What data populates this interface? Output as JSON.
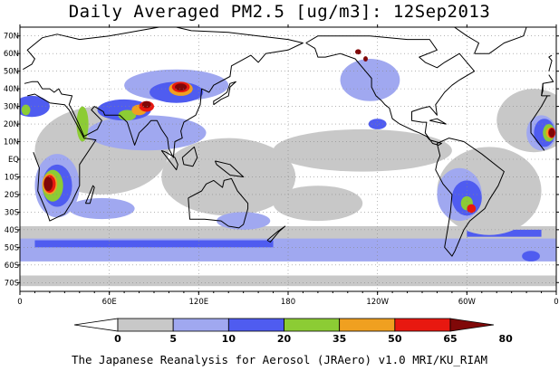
{
  "title": "Daily Averaged PM2.5 [ug/m3]: 12Sep2013",
  "credit": "The Japanese Reanalysis for Aerosol (JRAero) v1.0 MRI/KU_RIAM",
  "map": {
    "projection": "equirectangular",
    "lon_range": [
      0,
      360
    ],
    "lat_range": [
      -75,
      75
    ],
    "lon_ticks": [
      {
        "lon": 0,
        "label": "0"
      },
      {
        "lon": 60,
        "label": "60E"
      },
      {
        "lon": 120,
        "label": "120E"
      },
      {
        "lon": 180,
        "label": "180"
      },
      {
        "lon": 240,
        "label": "120W"
      },
      {
        "lon": 300,
        "label": "60W"
      },
      {
        "lon": 360,
        "label": "0"
      }
    ],
    "lat_ticks": [
      {
        "lat": 70,
        "label": "70N"
      },
      {
        "lat": 60,
        "label": "60N"
      },
      {
        "lat": 50,
        "label": "50N"
      },
      {
        "lat": 40,
        "label": "40N"
      },
      {
        "lat": 30,
        "label": "30N"
      },
      {
        "lat": 20,
        "label": "20N"
      },
      {
        "lat": 10,
        "label": "10N"
      },
      {
        "lat": 0,
        "label": "EQ"
      },
      {
        "lat": -10,
        "label": "10S"
      },
      {
        "lat": -20,
        "label": "20S"
      },
      {
        "lat": -30,
        "label": "30S"
      },
      {
        "lat": -40,
        "label": "40S"
      },
      {
        "lat": -50,
        "label": "50S"
      },
      {
        "lat": -60,
        "label": "60S"
      },
      {
        "lat": -70,
        "label": "70S"
      }
    ],
    "grid": "dotted"
  },
  "colorbar": {
    "levels": [
      "0",
      "5",
      "10",
      "20",
      "35",
      "50",
      "65",
      "80"
    ],
    "colors": [
      "#ffffff",
      "#c8c8c8",
      "#a0a8f0",
      "#4f5cf0",
      "#8ccc34",
      "#f0a020",
      "#e81810",
      "#800808"
    ],
    "extend": "both"
  },
  "bands": [
    {
      "color": "#c8c8c8",
      "lon": [
        0,
        360
      ],
      "lat": [
        -38,
        -52
      ]
    },
    {
      "color": "#c8c8c8",
      "lon": [
        0,
        360
      ],
      "lat": [
        40,
        62
      ]
    },
    {
      "color": "#c8c8c8",
      "lon": [
        0,
        360
      ],
      "lat": [
        -66,
        -72
      ]
    },
    {
      "color": "#a0a8f0",
      "lon": [
        0,
        360
      ],
      "lat": [
        -45,
        -58
      ]
    },
    {
      "color": "#4f5cf0",
      "lon": [
        10,
        170
      ],
      "lat": [
        -46,
        -50
      ]
    },
    {
      "color": "#4f5cf0",
      "lon": [
        300,
        350
      ],
      "lat": [
        -40,
        -44
      ]
    }
  ],
  "blobs": [
    {
      "c": "#c8c8c8",
      "lon": 55,
      "lat": 5,
      "rx": 45,
      "ry": 25
    },
    {
      "c": "#c8c8c8",
      "lon": 140,
      "lat": -10,
      "rx": 45,
      "ry": 22
    },
    {
      "c": "#c8c8c8",
      "lon": 230,
      "lat": 5,
      "rx": 60,
      "ry": 12
    },
    {
      "c": "#c8c8c8",
      "lon": 315,
      "lat": -18,
      "rx": 35,
      "ry": 25
    },
    {
      "c": "#c8c8c8",
      "lon": 200,
      "lat": -25,
      "rx": 30,
      "ry": 10
    },
    {
      "c": "#c8c8c8",
      "lon": 345,
      "lat": 22,
      "rx": 25,
      "ry": 18
    },
    {
      "c": "#a0a8f0",
      "lon": 85,
      "lat": 15,
      "rx": 40,
      "ry": 10
    },
    {
      "c": "#a0a8f0",
      "lon": 105,
      "lat": 42,
      "rx": 35,
      "ry": 9
    },
    {
      "c": "#a0a8f0",
      "lon": 25,
      "lat": -15,
      "rx": 15,
      "ry": 18
    },
    {
      "c": "#a0a8f0",
      "lon": 55,
      "lat": -28,
      "rx": 22,
      "ry": 6
    },
    {
      "c": "#a0a8f0",
      "lon": 150,
      "lat": -35,
      "rx": 18,
      "ry": 5
    },
    {
      "c": "#a0a8f0",
      "lon": 295,
      "lat": -20,
      "rx": 15,
      "ry": 15
    },
    {
      "c": "#a0a8f0",
      "lon": 350,
      "lat": 15,
      "rx": 10,
      "ry": 10
    },
    {
      "c": "#a0a8f0",
      "lon": 235,
      "lat": 45,
      "rx": 20,
      "ry": 12
    },
    {
      "c": "#4f5cf0",
      "lon": 8,
      "lat": 30,
      "rx": 12,
      "ry": 6
    },
    {
      "c": "#4f5cf0",
      "lon": 70,
      "lat": 28,
      "rx": 18,
      "ry": 6
    },
    {
      "c": "#4f5cf0",
      "lon": 105,
      "lat": 38,
      "rx": 18,
      "ry": 6
    },
    {
      "c": "#4f5cf0",
      "lon": 25,
      "lat": -15,
      "rx": 10,
      "ry": 12
    },
    {
      "c": "#4f5cf0",
      "lon": 300,
      "lat": -22,
      "rx": 10,
      "ry": 10
    },
    {
      "c": "#4f5cf0",
      "lon": 352,
      "lat": 15,
      "rx": 7,
      "ry": 8
    },
    {
      "c": "#4f5cf0",
      "lon": 343,
      "lat": -55,
      "rx": 6,
      "ry": 3
    },
    {
      "c": "#4f5cf0",
      "lon": 240,
      "lat": 20,
      "rx": 6,
      "ry": 3
    },
    {
      "c": "#8ccc34",
      "lon": 22,
      "lat": -15,
      "rx": 7,
      "ry": 9
    },
    {
      "c": "#8ccc34",
      "lon": 42,
      "lat": 20,
      "rx": 4,
      "ry": 10
    },
    {
      "c": "#8ccc34",
      "lon": 72,
      "lat": 25,
      "rx": 6,
      "ry": 3
    },
    {
      "c": "#8ccc34",
      "lon": 4,
      "lat": 28,
      "rx": 3,
      "ry": 3
    },
    {
      "c": "#8ccc34",
      "lon": 355,
      "lat": 15,
      "rx": 4,
      "ry": 5
    },
    {
      "c": "#8ccc34",
      "lon": 300,
      "lat": -25,
      "rx": 4,
      "ry": 4
    },
    {
      "c": "#f0a020",
      "lon": 20,
      "lat": -14,
      "rx": 5,
      "ry": 6
    },
    {
      "c": "#f0a020",
      "lon": 80,
      "lat": 28,
      "rx": 5,
      "ry": 3
    },
    {
      "c": "#f0a020",
      "lon": 108,
      "lat": 40,
      "rx": 8,
      "ry": 4
    },
    {
      "c": "#f0a020",
      "lon": 356,
      "lat": 15,
      "rx": 3,
      "ry": 3
    },
    {
      "c": "#e81810",
      "lon": 20,
      "lat": -14,
      "rx": 4,
      "ry": 5
    },
    {
      "c": "#e81810",
      "lon": 85,
      "lat": 30,
      "rx": 5,
      "ry": 3
    },
    {
      "c": "#e81810",
      "lon": 108,
      "lat": 41,
      "rx": 6,
      "ry": 3
    },
    {
      "c": "#e81810",
      "lon": 357,
      "lat": 15,
      "rx": 2.5,
      "ry": 3
    },
    {
      "c": "#e81810",
      "lon": 303,
      "lat": -28,
      "rx": 3,
      "ry": 2.5
    },
    {
      "c": "#800808",
      "lon": 19,
      "lat": -14,
      "rx": 3,
      "ry": 4
    },
    {
      "c": "#800808",
      "lon": 85,
      "lat": 31,
      "rx": 3,
      "ry": 2
    },
    {
      "c": "#800808",
      "lon": 108,
      "lat": 41,
      "rx": 4,
      "ry": 2
    },
    {
      "c": "#800808",
      "lon": 357,
      "lat": 15,
      "rx": 2,
      "ry": 2.5
    },
    {
      "c": "#800808",
      "lon": 227,
      "lat": 61,
      "rx": 2,
      "ry": 1.5
    },
    {
      "c": "#800808",
      "lon": 232,
      "lat": 57,
      "rx": 1.5,
      "ry": 1.5
    }
  ],
  "coastlines": [
    [
      [
        5,
        36
      ],
      [
        10,
        37
      ],
      [
        20,
        32
      ],
      [
        30,
        31
      ],
      [
        33,
        28
      ],
      [
        43,
        12
      ],
      [
        51,
        11
      ],
      [
        40,
        -3
      ],
      [
        40,
        -15
      ],
      [
        35,
        -24
      ],
      [
        30,
        -31
      ],
      [
        20,
        -35
      ],
      [
        18,
        -30
      ],
      [
        12,
        -18
      ],
      [
        13,
        -5
      ],
      [
        9,
        4
      ],
      [
        -8,
        5
      ],
      [
        -17,
        15
      ],
      [
        -17,
        21
      ],
      [
        -10,
        30
      ],
      [
        -6,
        36
      ],
      [
        5,
        36
      ]
    ],
    [
      [
        -10,
        36
      ],
      [
        -9,
        43
      ],
      [
        -2,
        44
      ],
      [
        -5,
        48
      ],
      [
        2,
        51
      ],
      [
        8,
        54
      ],
      [
        10,
        57
      ],
      [
        5,
        62
      ],
      [
        15,
        69
      ],
      [
        25,
        71
      ],
      [
        40,
        68
      ],
      [
        60,
        70
      ],
      [
        80,
        73
      ],
      [
        100,
        76
      ],
      [
        115,
        73
      ],
      [
        140,
        72
      ],
      [
        160,
        70
      ],
      [
        180,
        68
      ],
      [
        190,
        66
      ],
      [
        180,
        62
      ],
      [
        165,
        60
      ],
      [
        160,
        55
      ],
      [
        155,
        59
      ],
      [
        142,
        53
      ],
      [
        141,
        47
      ],
      [
        130,
        42
      ],
      [
        127,
        38
      ],
      [
        122,
        40
      ],
      [
        121,
        31
      ],
      [
        118,
        25
      ],
      [
        110,
        21
      ],
      [
        108,
        16
      ],
      [
        109,
        12
      ],
      [
        104,
        10
      ],
      [
        103,
        1
      ],
      [
        100,
        6
      ],
      [
        99,
        12
      ],
      [
        95,
        17
      ],
      [
        92,
        22
      ],
      [
        88,
        22
      ],
      [
        86,
        20
      ],
      [
        80,
        15
      ],
      [
        77,
        8
      ],
      [
        72,
        21
      ],
      [
        67,
        25
      ],
      [
        57,
        25
      ],
      [
        56,
        27
      ],
      [
        50,
        30
      ],
      [
        48,
        28
      ],
      [
        55,
        22
      ],
      [
        52,
        17
      ],
      [
        43,
        13
      ],
      [
        39,
        21
      ],
      [
        35,
        28
      ],
      [
        33,
        31
      ],
      [
        35,
        36
      ],
      [
        28,
        37
      ],
      [
        26,
        40
      ],
      [
        23,
        38
      ],
      [
        20,
        40
      ],
      [
        15,
        40
      ],
      [
        12,
        44
      ],
      [
        8,
        44
      ],
      [
        3,
        43
      ],
      [
        -4,
        36
      ],
      [
        -10,
        36
      ]
    ],
    [
      [
        -10,
        36
      ],
      [
        -9,
        39
      ],
      [
        -9,
        43
      ]
    ],
    [
      [
        130,
        31
      ],
      [
        135,
        34
      ],
      [
        140,
        36
      ],
      [
        141,
        41
      ],
      [
        145,
        44
      ],
      [
        141,
        43
      ],
      [
        139,
        38
      ],
      [
        134,
        35
      ],
      [
        130,
        33
      ],
      [
        130,
        31
      ]
    ],
    [
      [
        113,
        -22
      ],
      [
        114,
        -34
      ],
      [
        124,
        -34
      ],
      [
        135,
        -35
      ],
      [
        140,
        -38
      ],
      [
        147,
        -39
      ],
      [
        150,
        -37
      ],
      [
        153,
        -28
      ],
      [
        153,
        -25
      ],
      [
        146,
        -18
      ],
      [
        142,
        -11
      ],
      [
        137,
        -12
      ],
      [
        136,
        -16
      ],
      [
        130,
        -12
      ],
      [
        125,
        -14
      ],
      [
        122,
        -18
      ],
      [
        113,
        -22
      ]
    ],
    [
      [
        95,
        5
      ],
      [
        105,
        -6
      ],
      [
        106,
        -3
      ],
      [
        104,
        1
      ],
      [
        98,
        4
      ],
      [
        95,
        5
      ]
    ],
    [
      [
        109,
        1
      ],
      [
        117,
        7
      ],
      [
        119,
        1
      ],
      [
        116,
        -4
      ],
      [
        110,
        -3
      ],
      [
        109,
        1
      ]
    ],
    [
      [
        131,
        -1
      ],
      [
        141,
        -3
      ],
      [
        150,
        -10
      ],
      [
        141,
        -9
      ],
      [
        132,
        -3
      ],
      [
        131,
        -1
      ]
    ],
    [
      [
        166,
        -46
      ],
      [
        173,
        -41
      ],
      [
        178,
        -38
      ],
      [
        174,
        -41
      ],
      [
        168,
        -47
      ],
      [
        166,
        -46
      ]
    ],
    [
      [
        44,
        -25
      ],
      [
        49,
        -15
      ],
      [
        50,
        -16
      ],
      [
        47,
        -25
      ],
      [
        44,
        -25
      ]
    ],
    [
      [
        -168,
        66
      ],
      [
        -160,
        70
      ],
      [
        -140,
        70
      ],
      [
        -125,
        70
      ],
      [
        -100,
        68
      ],
      [
        -85,
        68
      ],
      [
        -80,
        62
      ],
      [
        -92,
        58
      ],
      [
        -88,
        55
      ],
      [
        -80,
        52
      ],
      [
        -75,
        55
      ],
      [
        -65,
        60
      ],
      [
        -60,
        55
      ],
      [
        -55,
        50
      ],
      [
        -65,
        45
      ],
      [
        -70,
        42
      ],
      [
        -75,
        38
      ],
      [
        -81,
        31
      ],
      [
        -80,
        25
      ],
      [
        -82,
        27
      ],
      [
        -85,
        30
      ],
      [
        -90,
        29
      ],
      [
        -97,
        27
      ],
      [
        -97,
        22
      ],
      [
        -90,
        21
      ],
      [
        -87,
        21
      ],
      [
        -88,
        15
      ],
      [
        -83,
        9
      ],
      [
        -79,
        8
      ],
      [
        -77,
        9
      ],
      [
        -85,
        11
      ],
      [
        -87,
        13
      ],
      [
        -92,
        15
      ],
      [
        -95,
        16
      ],
      [
        -105,
        20
      ],
      [
        -110,
        23
      ],
      [
        -112,
        29
      ],
      [
        -115,
        31
      ],
      [
        -117,
        33
      ],
      [
        -121,
        36
      ],
      [
        -124,
        41
      ],
      [
        -124,
        46
      ],
      [
        -128,
        50
      ],
      [
        -135,
        57
      ],
      [
        -145,
        60
      ],
      [
        -155,
        58
      ],
      [
        -160,
        58
      ],
      [
        -162,
        63
      ],
      [
        -168,
        66
      ]
    ],
    [
      [
        -80,
        9
      ],
      [
        -72,
        12
      ],
      [
        -62,
        10
      ],
      [
        -50,
        3
      ],
      [
        -35,
        -7
      ],
      [
        -39,
        -15
      ],
      [
        -45,
        -23
      ],
      [
        -48,
        -28
      ],
      [
        -58,
        -35
      ],
      [
        -62,
        -40
      ],
      [
        -65,
        -46
      ],
      [
        -68,
        -52
      ],
      [
        -70,
        -55
      ],
      [
        -75,
        -50
      ],
      [
        -73,
        -40
      ],
      [
        -71,
        -30
      ],
      [
        -70,
        -20
      ],
      [
        -76,
        -14
      ],
      [
        -81,
        -6
      ],
      [
        -80,
        -2
      ],
      [
        -78,
        2
      ],
      [
        -80,
        9
      ]
    ],
    [
      [
        -55,
        60
      ],
      [
        -45,
        60
      ],
      [
        -35,
        66
      ],
      [
        -22,
        70
      ],
      [
        -20,
        75
      ],
      [
        -40,
        76
      ],
      [
        -60,
        76
      ],
      [
        -70,
        76
      ],
      [
        -60,
        70
      ],
      [
        -52,
        66
      ],
      [
        -55,
        60
      ]
    ],
    [
      [
        -5,
        50
      ],
      [
        -3,
        56
      ],
      [
        -5,
        58
      ],
      [
        -3,
        59
      ],
      [
        1,
        52
      ],
      [
        -5,
        50
      ]
    ],
    [
      [
        -85,
        22
      ],
      [
        -74,
        20
      ],
      [
        -80,
        23
      ],
      [
        -85,
        22
      ]
    ]
  ]
}
